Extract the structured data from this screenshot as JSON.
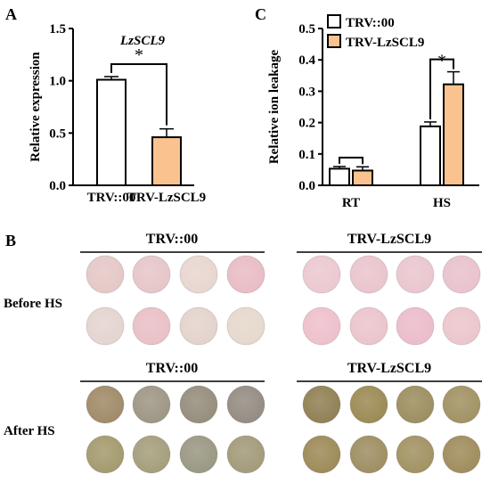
{
  "panel_labels": {
    "a": "A",
    "b": "B",
    "c": "C"
  },
  "colors": {
    "white_bar": "#ffffff",
    "orange_bar": "#f9c28e",
    "axis": "#000000"
  },
  "chart_data": [
    {
      "type": "bar",
      "title": "LzSCL9",
      "ylabel": "Relative expression",
      "xlabel": "",
      "categories": [
        "TRV::00",
        "TRV-LzSCL9"
      ],
      "values": [
        1.01,
        0.46
      ],
      "errors": [
        0.03,
        0.08
      ],
      "ylim": [
        0,
        1.5
      ],
      "yticks": [
        "0.0",
        "0.5",
        "1.0",
        "1.5"
      ],
      "significance": "*",
      "colors": [
        "#ffffff",
        "#f9c28e"
      ]
    },
    {
      "type": "bar",
      "title": "",
      "ylabel": "Relative ion leakage",
      "xlabel": "",
      "categories": [
        "RT",
        "HS"
      ],
      "series": [
        {
          "name": "TRV::00",
          "values": [
            0.053,
            0.188
          ],
          "errors": [
            0.007,
            0.014
          ],
          "color": "#ffffff"
        },
        {
          "name": "TRV-LzSCL9",
          "values": [
            0.047,
            0.322
          ],
          "errors": [
            0.012,
            0.04
          ],
          "color": "#f9c28e"
        }
      ],
      "ylim": [
        0,
        0.5
      ],
      "yticks": [
        "0.0",
        "0.1",
        "0.2",
        "0.3",
        "0.4",
        "0.5"
      ],
      "significance": [
        "",
        "*"
      ],
      "legend_position": "top-left"
    }
  ],
  "panel_b": {
    "group_titles": [
      "TRV::00",
      "TRV-LzSCL9",
      "TRV::00",
      "TRV-LzSCL9"
    ],
    "row_labels": [
      "Before HS",
      "After HS"
    ],
    "disc_colors": {
      "before_left": [
        "#e4c8c6",
        "#e6c6c8",
        "#e8d6d0",
        "#e9bcc4",
        "#e5d4d0",
        "#e9c0c6",
        "#e4d3cc",
        "#e6d8cc"
      ],
      "before_right": [
        "#ecc8d0",
        "#eac4cc",
        "#eac6ce",
        "#e9c2cc",
        "#eec0cc",
        "#ebc4cc",
        "#ecbccb",
        "#ebc6cc"
      ],
      "after_left": [
        "#a08a68",
        "#9e9684",
        "#958d7c",
        "#948c82",
        "#a49a6e",
        "#a59e7c",
        "#9a9882",
        "#a39a7a"
      ],
      "after_right": [
        "#918054",
        "#9c8a54",
        "#9c8e60",
        "#a19264",
        "#9e8a58",
        "#9e8e62",
        "#a29262",
        "#a08c5c"
      ]
    }
  }
}
